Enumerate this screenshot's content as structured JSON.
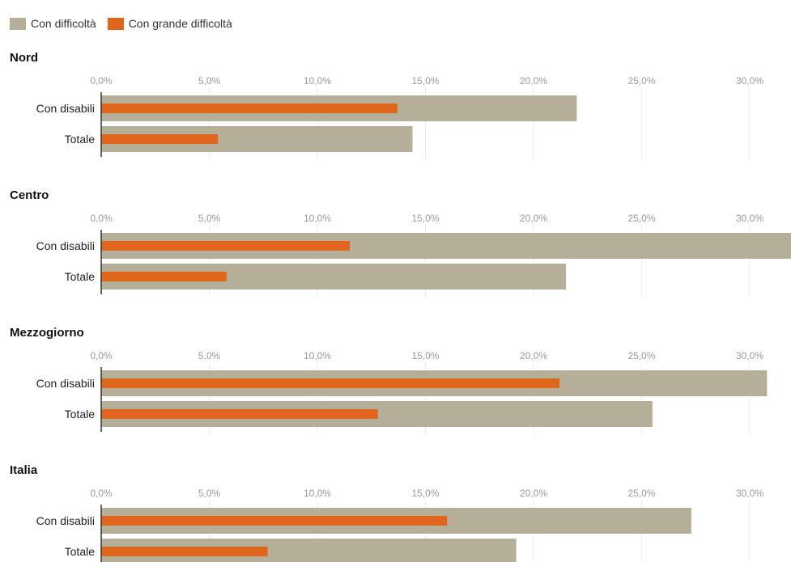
{
  "chart_data": {
    "type": "bar",
    "orientation": "horizontal",
    "title": "",
    "xlabel": "",
    "ylabel": "",
    "xlim": [
      0,
      32
    ],
    "x_ticks": [
      "0,0%",
      "5,0%",
      "10,0%",
      "15,0%",
      "20,0%",
      "25,0%",
      "30,0%"
    ],
    "grid": true,
    "legend": {
      "placement": "top-left",
      "entries": [
        {
          "name": "Con difficoltà",
          "color": "#b5ae98"
        },
        {
          "name": "Con grande difficoltà",
          "color": "#e0661e"
        }
      ]
    },
    "categories": [
      "Con disabili",
      "Totale"
    ],
    "panels": [
      {
        "name": "Nord",
        "series": [
          {
            "name": "Con difficoltà",
            "values": [
              22.0,
              14.4
            ]
          },
          {
            "name": "Con grande difficoltà",
            "values": [
              13.7,
              5.4
            ]
          }
        ]
      },
      {
        "name": "Centro",
        "series": [
          {
            "name": "Con difficoltà",
            "values": [
              32.0,
              21.5
            ]
          },
          {
            "name": "Con grande difficoltà",
            "values": [
              11.5,
              5.8
            ]
          }
        ]
      },
      {
        "name": "Mezzogiorno",
        "series": [
          {
            "name": "Con difficoltà",
            "values": [
              30.8,
              25.5
            ]
          },
          {
            "name": "Con grande difficoltà",
            "values": [
              21.2,
              12.8
            ]
          }
        ]
      },
      {
        "name": "Italia",
        "series": [
          {
            "name": "Con difficoltà",
            "values": [
              27.3,
              19.2
            ]
          },
          {
            "name": "Con grande difficoltà",
            "values": [
              16.0,
              7.7
            ]
          }
        ]
      }
    ]
  }
}
